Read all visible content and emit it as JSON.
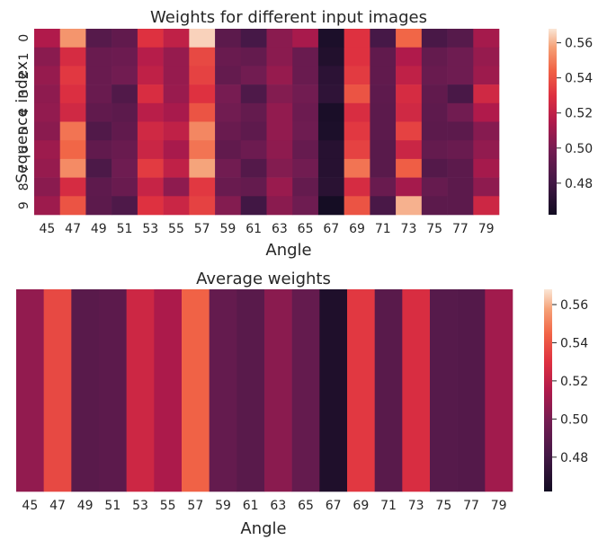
{
  "chart_data": [
    {
      "type": "heatmap",
      "title": "Weights for different input images",
      "xlabel": "Angle",
      "ylabel": "Sequence index",
      "x": [
        "45",
        "47",
        "49",
        "51",
        "53",
        "55",
        "57",
        "59",
        "61",
        "63",
        "65",
        "67",
        "69",
        "71",
        "73",
        "75",
        "77",
        "79"
      ],
      "y": [
        "0",
        "1",
        "2",
        "3",
        "4",
        "5",
        "6",
        "7",
        "8",
        "9"
      ],
      "values": [
        [
          0.515,
          0.555,
          0.488,
          0.492,
          0.53,
          0.52,
          0.565,
          0.49,
          0.482,
          0.505,
          0.513,
          0.466,
          0.53,
          0.482,
          0.545,
          0.483,
          0.488,
          0.512
        ],
        [
          0.505,
          0.527,
          0.495,
          0.496,
          0.517,
          0.508,
          0.537,
          0.495,
          0.493,
          0.505,
          0.495,
          0.468,
          0.53,
          0.492,
          0.515,
          0.493,
          0.497,
          0.508
        ],
        [
          0.508,
          0.532,
          0.495,
          0.498,
          0.52,
          0.508,
          0.535,
          0.493,
          0.498,
          0.508,
          0.495,
          0.472,
          0.533,
          0.492,
          0.52,
          0.495,
          0.497,
          0.51
        ],
        [
          0.506,
          0.529,
          0.495,
          0.486,
          0.528,
          0.509,
          0.53,
          0.5,
          0.485,
          0.503,
          0.498,
          0.473,
          0.54,
          0.491,
          0.527,
          0.492,
          0.483,
          0.525
        ],
        [
          0.507,
          0.525,
          0.492,
          0.49,
          0.518,
          0.513,
          0.54,
          0.498,
          0.493,
          0.507,
          0.496,
          0.465,
          0.528,
          0.49,
          0.525,
          0.491,
          0.498,
          0.515
        ],
        [
          0.505,
          0.548,
          0.486,
          0.492,
          0.525,
          0.52,
          0.552,
          0.495,
          0.491,
          0.507,
          0.497,
          0.466,
          0.532,
          0.49,
          0.535,
          0.49,
          0.49,
          0.504
        ],
        [
          0.51,
          0.545,
          0.492,
          0.495,
          0.523,
          0.513,
          0.548,
          0.492,
          0.496,
          0.506,
          0.494,
          0.47,
          0.535,
          0.489,
          0.523,
          0.493,
          0.495,
          0.507
        ],
        [
          0.508,
          0.553,
          0.484,
          0.497,
          0.533,
          0.52,
          0.558,
          0.498,
          0.487,
          0.503,
          0.498,
          0.47,
          0.548,
          0.489,
          0.543,
          0.487,
          0.49,
          0.512
        ],
        [
          0.505,
          0.527,
          0.491,
          0.495,
          0.522,
          0.506,
          0.532,
          0.495,
          0.493,
          0.509,
          0.493,
          0.471,
          0.527,
          0.495,
          0.512,
          0.494,
          0.49,
          0.506
        ],
        [
          0.51,
          0.54,
          0.49,
          0.485,
          0.53,
          0.523,
          0.535,
          0.503,
          0.48,
          0.505,
          0.497,
          0.463,
          0.54,
          0.483,
          0.56,
          0.49,
          0.49,
          0.524
        ]
      ],
      "colorbar": {
        "ticks": [
          0.48,
          0.5,
          0.52,
          0.54,
          0.56
        ],
        "range": [
          0.462,
          0.568
        ],
        "colormap": "rocket"
      }
    },
    {
      "type": "heatmap",
      "title": "Average weights",
      "xlabel": "Angle",
      "ylabel": "",
      "x": [
        "45",
        "47",
        "49",
        "51",
        "53",
        "55",
        "57",
        "59",
        "61",
        "63",
        "65",
        "67",
        "69",
        "71",
        "73",
        "75",
        "77",
        "79"
      ],
      "values": [
        [
          0.507,
          0.537,
          0.489,
          0.49,
          0.524,
          0.514,
          0.544,
          0.493,
          0.489,
          0.505,
          0.493,
          0.467,
          0.532,
          0.489,
          0.528,
          0.488,
          0.487,
          0.511
        ]
      ],
      "colorbar": {
        "ticks": [
          0.48,
          0.5,
          0.52,
          0.54,
          0.56
        ],
        "range": [
          0.462,
          0.568
        ],
        "colormap": "rocket"
      }
    }
  ]
}
